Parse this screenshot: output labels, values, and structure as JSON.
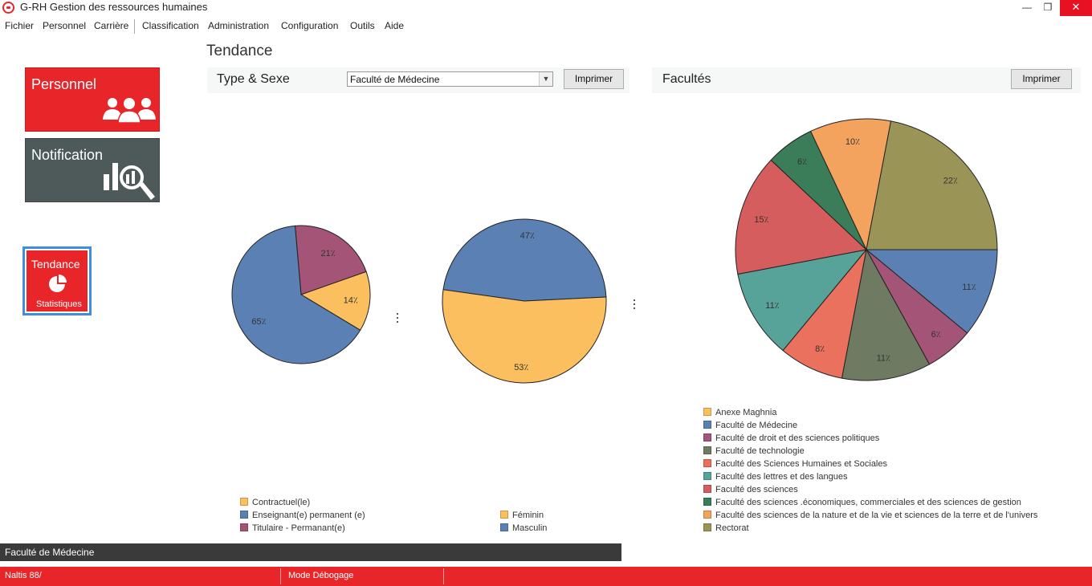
{
  "window": {
    "title": "G-RH Gestion des ressources humaines",
    "minimize": "—",
    "maximize": "❐",
    "close": "✕"
  },
  "menu": [
    "Fichier",
    "Personnel",
    "Carrière",
    "Classification",
    "Administration",
    "Configuration",
    "Outils",
    "Aide"
  ],
  "tiles": {
    "personnel": "Personnel",
    "notification": "Notification",
    "tendance": "Tendance",
    "tendance_sub": "Statistiques"
  },
  "section_title": "Tendance",
  "left_panel": {
    "title": "Type & Sexe",
    "selected_faculty": "Faculté de Médecine",
    "print_label": "Imprimer"
  },
  "right_panel": {
    "title": "Facultés",
    "print_label": "Imprimer"
  },
  "footer": {
    "faculty": "Faculté de Médecine",
    "status_left": "Naltis 88/",
    "status_mode": "Mode Débogage"
  },
  "colors": {
    "brand_red": "#e8262a",
    "tile_dark": "#4e5a5a"
  },
  "icons": {
    "personnel": "users-group-icon",
    "notification": "search-chart-icon",
    "tendance": "pie-chart-icon"
  },
  "chart_data": [
    {
      "type": "pie",
      "title": "",
      "slices": [
        {
          "label": "Contractuel(le)",
          "value": 14,
          "color": "#fcbf5f"
        },
        {
          "label": "Enseignant(e) permanent (e)",
          "value": 65,
          "color": "#5b80b4"
        },
        {
          "label": "Titulaire - Permanant(e)",
          "value": 21,
          "color": "#a45476"
        }
      ],
      "labels_shown": [
        "14٪",
        "65٪",
        "21٪"
      ]
    },
    {
      "type": "pie",
      "title": "",
      "slices": [
        {
          "label": "Féminin",
          "value": 53,
          "color": "#fcbf5f"
        },
        {
          "label": "Masculin",
          "value": 47,
          "color": "#5b80b4"
        }
      ],
      "labels_shown": [
        "53٪",
        "47٪"
      ]
    },
    {
      "type": "pie",
      "title": "",
      "legend_position": "bottom",
      "slices": [
        {
          "label": "Anexe Maghnia",
          "value": 0,
          "color": "#fcbf5f"
        },
        {
          "label": "Faculté de Médecine",
          "value": 11,
          "color": "#5b80b4"
        },
        {
          "label": "Faculté de droit et des sciences politiques",
          "value": 6,
          "color": "#a45476"
        },
        {
          "label": "Faculté de technologie",
          "value": 11,
          "color": "#6e7b62"
        },
        {
          "label": "Faculté des Sciences Humaines et Sociales",
          "value": 8,
          "color": "#e9715d"
        },
        {
          "label": "Faculté des lettres et des langues",
          "value": 11,
          "color": "#57a39a"
        },
        {
          "label": "Faculté des sciences",
          "value": 15,
          "color": "#d55d5d"
        },
        {
          "label": "Faculté des sciences .économiques, commerciales et des sciences de gestion",
          "value": 6,
          "color": "#3b7c59"
        },
        {
          "label": "Faculté des sciences de la nature et de la vie et sciences de la terre et de l'univers",
          "value": 10,
          "color": "#f4a35e"
        },
        {
          "label": "Rectorat",
          "value": 22,
          "color": "#9a9557"
        }
      ],
      "labels_shown": [
        "0٪",
        "11٪",
        "6٪",
        "11٪",
        "8٪",
        "11٪",
        "15٪",
        "6٪",
        "10٪",
        "22٪"
      ]
    }
  ]
}
